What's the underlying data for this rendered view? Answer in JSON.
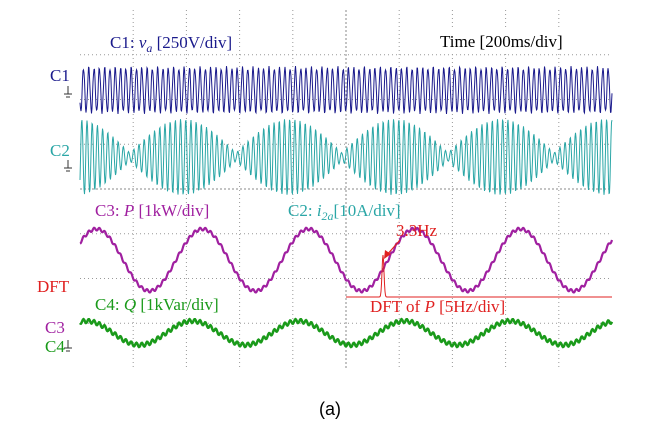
{
  "labels": {
    "c1": "C1",
    "c2": "C2",
    "dft": "DFT",
    "c3": "C3",
    "c4": "C4"
  },
  "annotations": {
    "c1": {
      "prefix": "C1: ",
      "var": "v",
      "sub": "a",
      "suffix": " [250V/div]"
    },
    "c2": {
      "prefix": "C2: ",
      "var": "i",
      "sub": "2a",
      "suffix": "[10A/div]"
    },
    "c3": {
      "prefix": "C3: ",
      "var": "P",
      "suffix": " [1kW/div]"
    },
    "c4": {
      "prefix": "C4: ",
      "var": "Q",
      "suffix": " [1kVar/div]"
    },
    "time": "Time [200ms/div]",
    "peak": "3.3Hz",
    "dft": {
      "prefix": "DFT of ",
      "var": "P",
      "suffix": " [5Hz/div]"
    }
  },
  "caption": "(a)"
}
